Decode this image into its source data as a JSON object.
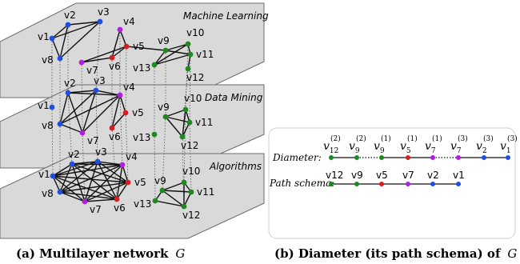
{
  "colors": {
    "blue": "#1f4fe0",
    "green": "#1e8a1e",
    "red": "#d81e1e",
    "purple": "#b01ee0",
    "plane_fill": "#d9d9d9",
    "plane_stroke": "#6a6a6a"
  },
  "layers": [
    {
      "title": "Machine Learning"
    },
    {
      "title": "Data Mining"
    },
    {
      "title": "Algorithms"
    }
  ],
  "node_labels": {
    "v1": "v1",
    "v2": "v2",
    "v3": "v3",
    "v4": "v4",
    "v5": "v5",
    "v6": "v6",
    "v7": "v7",
    "v8": "v8",
    "v9": "v9",
    "v10": "v10",
    "v11": "v11",
    "v12": "v12",
    "v13": "v13"
  },
  "node_colors": {
    "v1": "blue",
    "v2": "blue",
    "v3": "blue",
    "v4": "purple",
    "v5": "red",
    "v6": "red",
    "v7": "purple",
    "v8": "blue",
    "v9": "green",
    "v10": "green",
    "v11": "green",
    "v12": "green",
    "v13": "green"
  },
  "panel_b": {
    "diameter_label": "Diameter:",
    "path_schema_label": "Path schema:",
    "diameter": [
      {
        "base": "v",
        "sub": "12",
        "sup": "(2)",
        "color": "green"
      },
      {
        "base": "v",
        "sub": "9",
        "sup": "(2)",
        "color": "green"
      },
      {
        "base": "v",
        "sub": "9",
        "sup": "(1)",
        "color": "green"
      },
      {
        "base": "v",
        "sub": "5",
        "sup": "(1)",
        "color": "red"
      },
      {
        "base": "v",
        "sub": "7",
        "sup": "(1)",
        "color": "purple"
      },
      {
        "base": "v",
        "sub": "7",
        "sup": "(3)",
        "color": "purple"
      },
      {
        "base": "v",
        "sub": "2",
        "sup": "(3)",
        "color": "blue"
      },
      {
        "base": "v",
        "sub": "1",
        "sup": "(3)",
        "color": "blue"
      }
    ],
    "path_schema": [
      {
        "label": "v12",
        "color": "green"
      },
      {
        "label": "v9",
        "color": "green"
      },
      {
        "label": "v5",
        "color": "red"
      },
      {
        "label": "v7",
        "color": "purple"
      },
      {
        "label": "v2",
        "color": "blue"
      },
      {
        "label": "v1",
        "color": "blue"
      }
    ]
  },
  "captions": {
    "a_prefix": "(a) Multilayer network",
    "a_symbol": "G",
    "b_prefix": "(b) Diameter (its path schema) of",
    "b_symbol": "G"
  }
}
